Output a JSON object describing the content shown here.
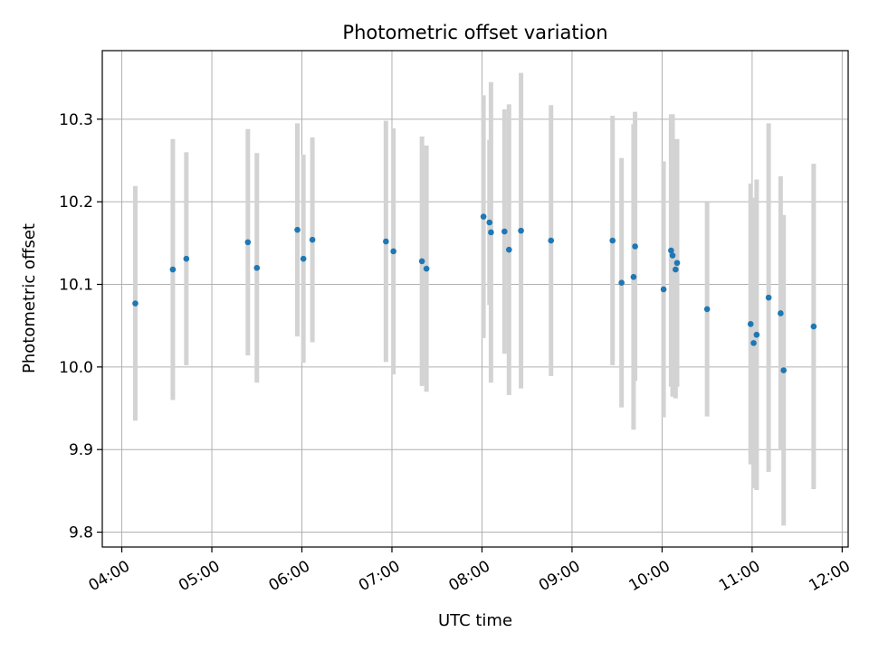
{
  "chart_data": {
    "type": "scatter",
    "title": "Photometric offset variation",
    "xlabel": "UTC time",
    "ylabel": "Photometric offset",
    "x_ticks": [
      "04:00",
      "05:00",
      "06:00",
      "07:00",
      "08:00",
      "09:00",
      "10:00",
      "11:00",
      "12:00"
    ],
    "y_ticks": [
      "9.8",
      "9.9",
      "10.0",
      "10.1",
      "10.2",
      "10.3"
    ],
    "xlim": [
      "03:47",
      "12:04"
    ],
    "ylim": [
      9.782,
      10.383
    ],
    "grid": true,
    "colors": {
      "point": "#1f77b4",
      "errorbar": "#d3d3d3",
      "grid": "#b0b0b0"
    },
    "points": [
      {
        "t": "04:09",
        "y": 10.077,
        "err": 0.142
      },
      {
        "t": "04:34",
        "y": 10.118,
        "err": 0.158
      },
      {
        "t": "04:43",
        "y": 10.131,
        "err": 0.129
      },
      {
        "t": "05:24",
        "y": 10.151,
        "err": 0.137
      },
      {
        "t": "05:30",
        "y": 10.12,
        "err": 0.139
      },
      {
        "t": "05:57",
        "y": 10.166,
        "err": 0.129
      },
      {
        "t": "06:01",
        "y": 10.131,
        "err": 0.126
      },
      {
        "t": "06:07",
        "y": 10.154,
        "err": 0.124
      },
      {
        "t": "06:56",
        "y": 10.152,
        "err": 0.146
      },
      {
        "t": "07:01",
        "y": 10.14,
        "err": 0.149
      },
      {
        "t": "07:20",
        "y": 10.128,
        "err": 0.151
      },
      {
        "t": "07:23",
        "y": 10.119,
        "err": 0.149
      },
      {
        "t": "08:01",
        "y": 10.182,
        "err": 0.147
      },
      {
        "t": "08:05",
        "y": 10.175,
        "err": 0.1
      },
      {
        "t": "08:06",
        "y": 10.163,
        "err": 0.182
      },
      {
        "t": "08:15",
        "y": 10.164,
        "err": 0.148
      },
      {
        "t": "08:18",
        "y": 10.142,
        "err": 0.176
      },
      {
        "t": "08:26",
        "y": 10.165,
        "err": 0.191
      },
      {
        "t": "08:46",
        "y": 10.153,
        "err": 0.164
      },
      {
        "t": "09:27",
        "y": 10.153,
        "err": 0.151
      },
      {
        "t": "09:33",
        "y": 10.102,
        "err": 0.151
      },
      {
        "t": "09:41",
        "y": 10.109,
        "err": 0.185
      },
      {
        "t": "09:42",
        "y": 10.146,
        "err": 0.163
      },
      {
        "t": "10:01",
        "y": 10.094,
        "err": 0.155
      },
      {
        "t": "10:06",
        "y": 10.141,
        "err": 0.165
      },
      {
        "t": "10:07",
        "y": 10.135,
        "err": 0.171
      },
      {
        "t": "10:09",
        "y": 10.118,
        "err": 0.156
      },
      {
        "t": "10:10",
        "y": 10.126,
        "err": 0.15
      },
      {
        "t": "10:30",
        "y": 10.07,
        "err": 0.13
      },
      {
        "t": "10:59",
        "y": 10.052,
        "err": 0.17
      },
      {
        "t": "11:01",
        "y": 10.029,
        "err": 0.176
      },
      {
        "t": "11:03",
        "y": 10.039,
        "err": 0.188
      },
      {
        "t": "11:11",
        "y": 10.084,
        "err": 0.211
      },
      {
        "t": "11:19",
        "y": 10.065,
        "err": 0.166
      },
      {
        "t": "11:21",
        "y": 9.996,
        "err": 0.188
      },
      {
        "t": "11:41",
        "y": 10.049,
        "err": 0.197
      }
    ]
  }
}
